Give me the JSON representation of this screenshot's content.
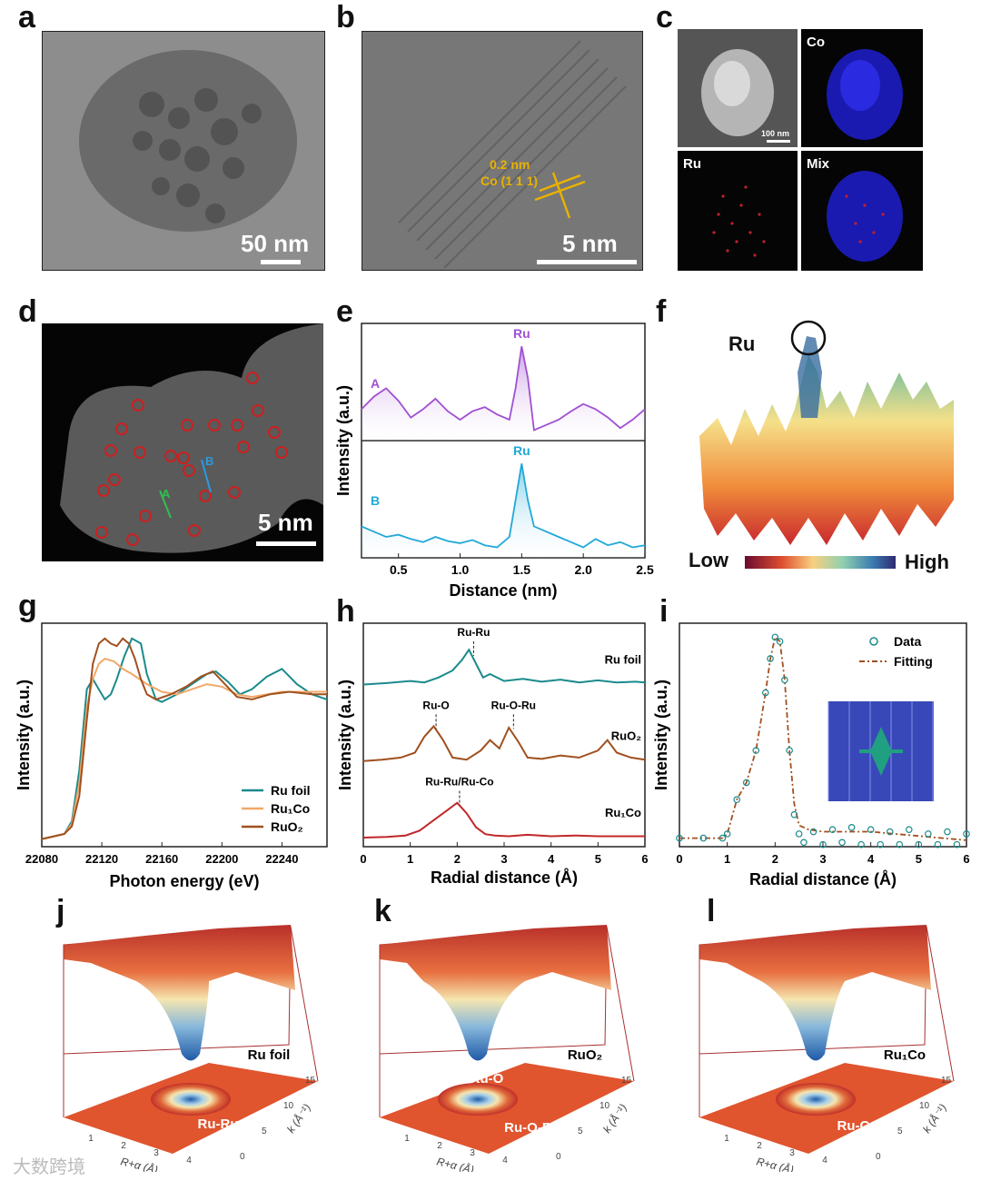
{
  "panels": {
    "a": {
      "label": "a",
      "scale": "50 nm"
    },
    "b": {
      "label": "b",
      "scale": "5 nm",
      "annot1": "0.2 nm",
      "annot2": "Co (1 1 1)"
    },
    "c": {
      "label": "c",
      "scale": "100 nm",
      "maps": [
        "Co",
        "Ru",
        "Mix"
      ]
    },
    "d": {
      "label": "d",
      "scale": "5 nm",
      "lineA": "A",
      "lineB": "B"
    },
    "e": {
      "label": "e",
      "peak": "Ru",
      "traceA": "A",
      "traceB": "B",
      "ylabel": "Intensity (a.u.)",
      "xlabel": "Distance (nm)",
      "xticks": [
        "0.5",
        "1.0",
        "1.5",
        "2.0",
        "2.5"
      ]
    },
    "f": {
      "label": "f",
      "elem": "Ru",
      "low": "Low",
      "high": "High"
    },
    "g": {
      "label": "g",
      "ylabel": "Intensity (a.u.)",
      "xlabel": "Photon energy (eV)",
      "xticks": [
        "22080",
        "22120",
        "22160",
        "22200",
        "22240"
      ],
      "legend": [
        "Ru foil",
        "Ru₁Co",
        "RuO₂"
      ]
    },
    "h": {
      "label": "h",
      "ylabel": "Intensity (a.u.)",
      "xlabel": "Radial distance (Å)",
      "xticks": [
        "0",
        "1",
        "2",
        "3",
        "4",
        "5",
        "6"
      ],
      "samples": [
        "Ru foil",
        "RuO₂",
        "Ru₁Co"
      ],
      "peaks": [
        "Ru-Ru",
        "Ru-O",
        "Ru-O-Ru",
        "Ru-Ru/Ru-Co"
      ]
    },
    "i": {
      "label": "i",
      "ylabel": "Intensity (a.u.)",
      "xlabel": "Radial distance (Å)",
      "xticks": [
        "0",
        "1",
        "2",
        "3",
        "4",
        "5",
        "6"
      ],
      "legend": [
        "Data",
        "Fitting"
      ]
    },
    "j": {
      "label": "j",
      "sample": "Ru foil",
      "feature": "Ru-Ru"
    },
    "k": {
      "label": "k",
      "sample": "RuO₂",
      "feature1": "Ru-O",
      "feature2": "Ru-O-Ru"
    },
    "l": {
      "label": "l",
      "sample": "Ru₁Co",
      "feature": "Ru-Co"
    },
    "wt_axes": {
      "r_label": "R+α (Å)",
      "k_label": "k (Å⁻¹)",
      "r_ticks": [
        "1",
        "2",
        "3",
        "4"
      ],
      "k_ticks": [
        "0",
        "5",
        "10",
        "15"
      ]
    }
  },
  "watermark": "大数跨境",
  "chart_data": [
    {
      "type": "line",
      "panel": "g",
      "title": "",
      "xlabel": "Photon energy (eV)",
      "ylabel": "Intensity (a.u.)",
      "xlim": [
        22080,
        22270
      ],
      "series": [
        {
          "name": "Ru foil",
          "color": "#1b8a8c",
          "x": [
            22080,
            22095,
            22100,
            22105,
            22110,
            22114,
            22118,
            22122,
            22126,
            22130,
            22135,
            22140,
            22146,
            22150,
            22156,
            22160,
            22170,
            22180,
            22190,
            22196,
            22204,
            22212,
            22220,
            22230,
            22240,
            22250,
            22260,
            22270
          ],
          "y": [
            0.03,
            0.05,
            0.1,
            0.3,
            0.62,
            0.66,
            0.62,
            0.58,
            0.6,
            0.66,
            0.75,
            0.82,
            0.8,
            0.68,
            0.58,
            0.57,
            0.6,
            0.64,
            0.68,
            0.69,
            0.65,
            0.6,
            0.62,
            0.67,
            0.7,
            0.64,
            0.6,
            0.58
          ]
        },
        {
          "name": "Ru₁Co",
          "color": "#f0a868",
          "x": [
            22080,
            22095,
            22100,
            22105,
            22110,
            22114,
            22118,
            22122,
            22128,
            22134,
            22140,
            22150,
            22160,
            22170,
            22180,
            22190,
            22200,
            22210,
            22220,
            22230,
            22240,
            22250,
            22260,
            22270
          ],
          "y": [
            0.03,
            0.05,
            0.09,
            0.25,
            0.55,
            0.66,
            0.72,
            0.74,
            0.73,
            0.7,
            0.68,
            0.64,
            0.61,
            0.6,
            0.62,
            0.64,
            0.63,
            0.6,
            0.59,
            0.6,
            0.61,
            0.61,
            0.61,
            0.61
          ]
        },
        {
          "name": "RuO₂",
          "color": "#a0501e",
          "x": [
            22080,
            22095,
            22100,
            22105,
            22110,
            22114,
            22118,
            22122,
            22126,
            22130,
            22134,
            22138,
            22142,
            22146,
            22150,
            22156,
            22166,
            22176,
            22186,
            22194,
            22202,
            22210,
            22220,
            22232,
            22245,
            22260,
            22270
          ],
          "y": [
            0.03,
            0.05,
            0.08,
            0.2,
            0.5,
            0.72,
            0.8,
            0.82,
            0.8,
            0.79,
            0.82,
            0.8,
            0.74,
            0.66,
            0.6,
            0.58,
            0.6,
            0.63,
            0.67,
            0.69,
            0.64,
            0.59,
            0.58,
            0.6,
            0.61,
            0.6,
            0.6
          ]
        }
      ]
    },
    {
      "type": "line",
      "panel": "h",
      "title": "",
      "xlabel": "Radial distance (Å)",
      "ylabel": "Intensity (a.u.)",
      "xlim": [
        0,
        6
      ],
      "series": [
        {
          "name": "Ru foil",
          "color": "#1b8a8c",
          "offset": 2.2,
          "x": [
            0,
            0.5,
            1.0,
            1.3,
            1.6,
            1.9,
            2.1,
            2.25,
            2.4,
            2.55,
            2.7,
            3.0,
            3.4,
            3.8,
            4.2,
            4.6,
            5.0,
            5.4,
            5.8,
            6.0
          ],
          "y": [
            0,
            0.02,
            0.05,
            0.03,
            0.1,
            0.2,
            0.35,
            0.5,
            0.3,
            0.1,
            0.15,
            0.05,
            0.08,
            0.04,
            0.07,
            0.03,
            0.06,
            0.03,
            0.04,
            0.03
          ]
        },
        {
          "name": "RuO₂",
          "color": "#a0501e",
          "offset": 1.1,
          "x": [
            0,
            0.4,
            0.8,
            1.1,
            1.3,
            1.5,
            1.7,
            1.9,
            2.2,
            2.5,
            2.7,
            2.9,
            3.1,
            3.3,
            3.5,
            3.8,
            4.2,
            4.6,
            5.0,
            5.2,
            5.4,
            5.7,
            6.0
          ],
          "y": [
            0,
            0.02,
            0.05,
            0.12,
            0.35,
            0.5,
            0.3,
            0.05,
            0.02,
            0.15,
            0.3,
            0.18,
            0.48,
            0.28,
            0.05,
            0.03,
            0.08,
            0.05,
            0.15,
            0.3,
            0.12,
            0.05,
            0.02
          ]
        },
        {
          "name": "Ru₁Co",
          "color": "#c0282a",
          "offset": 0.0,
          "x": [
            0,
            0.5,
            0.9,
            1.2,
            1.5,
            1.8,
            2.0,
            2.2,
            2.4,
            2.6,
            2.8,
            3.1,
            3.5,
            4.0,
            4.5,
            5.0,
            5.5,
            6.0
          ],
          "y": [
            0,
            0.01,
            0.03,
            0.1,
            0.25,
            0.4,
            0.5,
            0.35,
            0.15,
            0.05,
            0.03,
            0.02,
            0.04,
            0.02,
            0.03,
            0.02,
            0.02,
            0.02
          ]
        }
      ]
    },
    {
      "type": "line",
      "panel": "i",
      "title": "",
      "xlabel": "Radial distance (Å)",
      "ylabel": "Intensity (a.u.)",
      "xlim": [
        0,
        6
      ],
      "series": [
        {
          "name": "Data",
          "color": "#1b8a8c",
          "x": [
            0,
            0.5,
            0.9,
            1.0,
            1.2,
            1.4,
            1.6,
            1.8,
            1.9,
            2.0,
            2.1,
            2.2,
            2.3,
            2.4,
            2.5,
            2.6,
            2.8,
            3.0,
            3.2,
            3.4,
            3.6,
            3.8,
            4.0,
            4.2,
            4.4,
            4.6,
            4.8,
            5.0,
            5.2,
            5.4,
            5.6,
            5.8,
            6.0
          ],
          "y": [
            0.04,
            0.04,
            0.04,
            0.06,
            0.22,
            0.3,
            0.45,
            0.72,
            0.88,
            0.98,
            0.96,
            0.78,
            0.45,
            0.15,
            0.06,
            0.02,
            0.07,
            0.01,
            0.08,
            0.02,
            0.09,
            0.01,
            0.08,
            0.01,
            0.07,
            0.01,
            0.08,
            0.01,
            0.06,
            0.01,
            0.07,
            0.01,
            0.06
          ]
        },
        {
          "name": "Fitting",
          "color": "#a0501e",
          "x": [
            0,
            0.5,
            0.9,
            1.0,
            1.2,
            1.4,
            1.6,
            1.8,
            1.9,
            2.0,
            2.1,
            2.2,
            2.3,
            2.4,
            2.5,
            2.7,
            3.0,
            3.5,
            4.0,
            4.5,
            5.0,
            5.5,
            6.0
          ],
          "y": [
            0.04,
            0.04,
            0.04,
            0.06,
            0.22,
            0.3,
            0.45,
            0.72,
            0.88,
            0.98,
            0.96,
            0.78,
            0.45,
            0.2,
            0.1,
            0.08,
            0.07,
            0.07,
            0.07,
            0.06,
            0.05,
            0.04,
            0.03
          ]
        }
      ]
    },
    {
      "type": "line",
      "panel": "e",
      "title": "",
      "xlabel": "Distance (nm)",
      "ylabel": "Intensity (a.u.)",
      "xlim": [
        0.2,
        2.5
      ],
      "series": [
        {
          "name": "A",
          "color": "#a050d0",
          "x": [
            0.2,
            0.3,
            0.4,
            0.5,
            0.6,
            0.7,
            0.8,
            0.9,
            1.0,
            1.1,
            1.2,
            1.3,
            1.4,
            1.45,
            1.5,
            1.55,
            1.6,
            1.7,
            1.8,
            1.9,
            2.0,
            2.1,
            2.2,
            2.3,
            2.4,
            2.5
          ],
          "y": [
            0.3,
            0.42,
            0.5,
            0.38,
            0.22,
            0.3,
            0.4,
            0.28,
            0.2,
            0.28,
            0.32,
            0.25,
            0.2,
            0.5,
            0.9,
            0.6,
            0.1,
            0.15,
            0.2,
            0.28,
            0.35,
            0.3,
            0.22,
            0.12,
            0.2,
            0.3
          ]
        },
        {
          "name": "B",
          "color": "#20a8d8",
          "x": [
            0.2,
            0.3,
            0.4,
            0.5,
            0.6,
            0.7,
            0.8,
            0.9,
            1.0,
            1.1,
            1.2,
            1.3,
            1.4,
            1.45,
            1.5,
            1.55,
            1.6,
            1.7,
            1.8,
            1.9,
            2.0,
            2.1,
            2.2,
            2.3,
            2.4,
            2.5
          ],
          "y": [
            0.3,
            0.25,
            0.2,
            0.22,
            0.18,
            0.15,
            0.2,
            0.16,
            0.14,
            0.17,
            0.12,
            0.1,
            0.2,
            0.55,
            0.9,
            0.55,
            0.3,
            0.25,
            0.2,
            0.15,
            0.1,
            0.18,
            0.12,
            0.15,
            0.1,
            0.12
          ]
        }
      ]
    }
  ]
}
